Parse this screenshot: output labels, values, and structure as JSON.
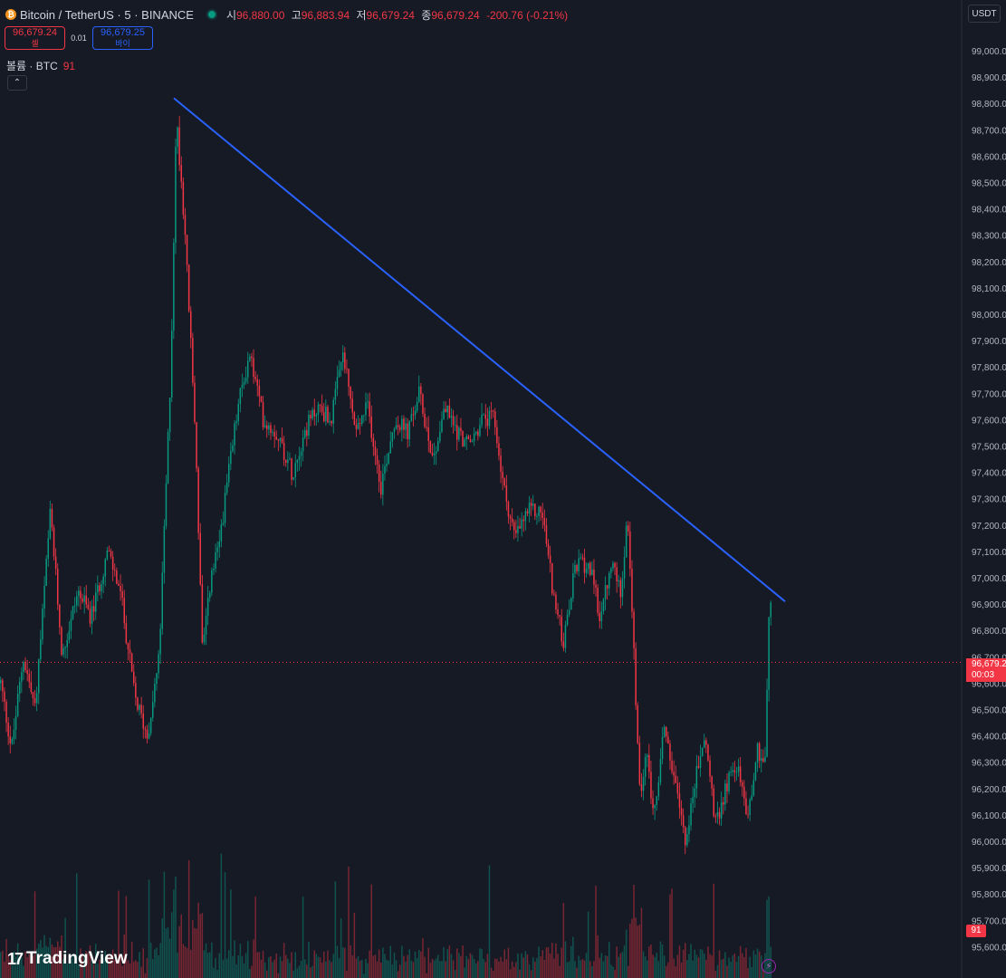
{
  "header": {
    "title": "Bitcoin / TetherUS · 5 · BINANCE",
    "coin_symbol": "₿",
    "open_label": "시",
    "open": "96,880.00",
    "high_label": "고",
    "high": "96,883.94",
    "low_label": "저",
    "low": "96,679.24",
    "close_label": "종",
    "close": "96,679.24",
    "change": "-200.76 (-0.21%)"
  },
  "trade": {
    "sell_price": "96,679.24",
    "sell_label": "셀",
    "spread": "0.01",
    "buy_price": "96,679.25",
    "buy_label": "바이"
  },
  "volume_indicator": {
    "label": "볼륨 · BTC",
    "value": "91"
  },
  "currency": "USDT",
  "price_scale": {
    "labels": [
      "99,000.00",
      "98,900.00",
      "98,800.00",
      "98,700.00",
      "98,600.00",
      "98,500.00",
      "98,400.00",
      "98,300.00",
      "98,200.00",
      "98,100.00",
      "98,000.00",
      "97,900.00",
      "97,800.00",
      "97,700.00",
      "97,600.00",
      "97,500.00",
      "97,400.00",
      "97,300.00",
      "97,200.00",
      "97,100.00",
      "97,000.00",
      "96,900.00",
      "96,800.00",
      "96,700.00",
      "96,600.00",
      "96,500.00",
      "96,400.00",
      "96,300.00",
      "96,200.00",
      "96,100.00",
      "96,000.00",
      "95,900.00",
      "95,800.00",
      "95,700.00",
      "95,600.00"
    ],
    "current_price": "96,679.2",
    "countdown": "00:03",
    "volume_tag": "91"
  },
  "brand": "TradingView",
  "colors": {
    "up": "#089981",
    "down": "#f23645",
    "trendline": "#2962ff",
    "background": "#161a25"
  },
  "chart_data": {
    "type": "candlestick",
    "symbol": "BTCUSDT",
    "interval": "5",
    "ylim": [
      95600,
      99100
    ],
    "last_price": 96679.24,
    "price_path": [
      [
        0,
        96600
      ],
      [
        12,
        96350
      ],
      [
        25,
        96700
      ],
      [
        38,
        96500
      ],
      [
        55,
        97250
      ],
      [
        68,
        96700
      ],
      [
        85,
        96950
      ],
      [
        100,
        96850
      ],
      [
        118,
        97100
      ],
      [
        132,
        96950
      ],
      [
        148,
        96550
      ],
      [
        162,
        96400
      ],
      [
        175,
        96700
      ],
      [
        188,
        97800
      ],
      [
        194,
        98750
      ],
      [
        203,
        98350
      ],
      [
        215,
        97550
      ],
      [
        223,
        96700
      ],
      [
        232,
        97000
      ],
      [
        240,
        97100
      ],
      [
        250,
        97350
      ],
      [
        262,
        97650
      ],
      [
        275,
        97850
      ],
      [
        290,
        97600
      ],
      [
        305,
        97550
      ],
      [
        322,
        97400
      ],
      [
        335,
        97550
      ],
      [
        350,
        97650
      ],
      [
        365,
        97600
      ],
      [
        378,
        97850
      ],
      [
        392,
        97550
      ],
      [
        405,
        97650
      ],
      [
        420,
        97350
      ],
      [
        435,
        97600
      ],
      [
        450,
        97550
      ],
      [
        462,
        97700
      ],
      [
        478,
        97450
      ],
      [
        490,
        97650
      ],
      [
        505,
        97550
      ],
      [
        518,
        97500
      ],
      [
        532,
        97600
      ],
      [
        545,
        97600
      ],
      [
        555,
        97350
      ],
      [
        568,
        97150
      ],
      [
        582,
        97250
      ],
      [
        598,
        97250
      ],
      [
        612,
        96900
      ],
      [
        622,
        96750
      ],
      [
        635,
        97050
      ],
      [
        650,
        97050
      ],
      [
        662,
        96850
      ],
      [
        675,
        97050
      ],
      [
        685,
        96950
      ],
      [
        692,
        97250
      ],
      [
        700,
        96650
      ],
      [
        706,
        96150
      ],
      [
        712,
        96350
      ],
      [
        722,
        96100
      ],
      [
        733,
        96450
      ],
      [
        745,
        96200
      ],
      [
        757,
        96000
      ],
      [
        768,
        96250
      ],
      [
        778,
        96400
      ],
      [
        790,
        96050
      ],
      [
        800,
        96200
      ],
      [
        812,
        96300
      ],
      [
        825,
        96100
      ],
      [
        836,
        96350
      ],
      [
        844,
        96300
      ],
      [
        848,
        96800
      ],
      [
        850,
        96950
      ],
      [
        852,
        96679
      ]
    ],
    "trendline": {
      "start": [
        192,
        98820
      ],
      "end": [
        867,
        96910
      ]
    }
  }
}
